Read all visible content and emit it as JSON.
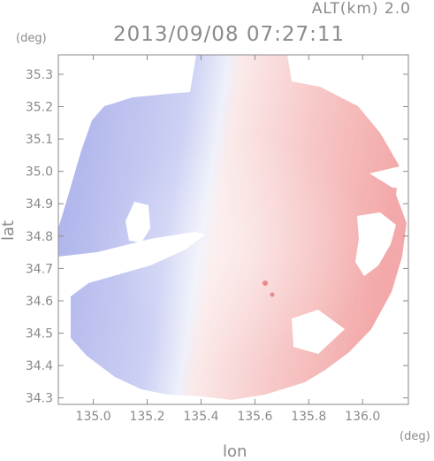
{
  "chart_data": {
    "type": "heatmap",
    "title": "2013/09/08 07:27:11",
    "subtitle": "ALT(km) 2.0",
    "xlabel": "lon",
    "ylabel": "lat",
    "x_unit": "(deg)",
    "y_unit": "(deg)",
    "xlim": [
      134.87,
      136.17
    ],
    "ylim": [
      34.28,
      35.36
    ],
    "x_ticks": [
      "135.0",
      "135.2",
      "135.4",
      "135.6",
      "135.8",
      "136.0"
    ],
    "x_tick_values": [
      135.0,
      135.2,
      135.4,
      135.6,
      135.8,
      136.0
    ],
    "y_ticks": [
      "34.3",
      "34.4",
      "34.5",
      "34.6",
      "34.7",
      "34.8",
      "34.9",
      "35.0",
      "35.1",
      "35.2",
      "35.3"
    ],
    "y_tick_values": [
      34.3,
      34.4,
      34.5,
      34.6,
      34.7,
      34.8,
      34.9,
      35.0,
      35.1,
      35.2,
      35.3
    ],
    "radar_center": [
      135.52,
      34.78
    ],
    "color_negative": "#aeb4ee",
    "color_neutral": "#f0f0f8",
    "color_positive": "#f6b8b8",
    "grid": false
  }
}
